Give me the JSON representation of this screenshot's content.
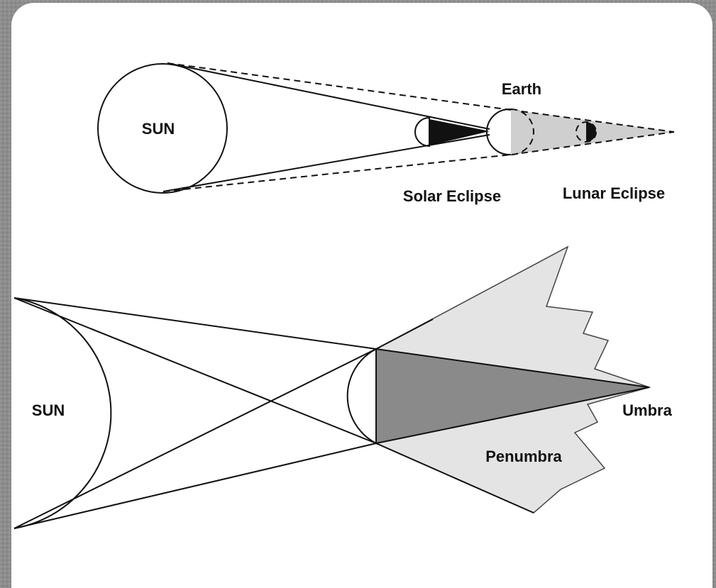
{
  "top_diagram": {
    "sun_label": "SUN",
    "earth_label": "Earth",
    "solar_eclipse_label": "Solar Eclipse",
    "lunar_eclipse_label": "Lunar Eclipse"
  },
  "bottom_diagram": {
    "sun_label": "SUN",
    "umbra_label": "Umbra",
    "penumbra_label": "Penumbra"
  }
}
